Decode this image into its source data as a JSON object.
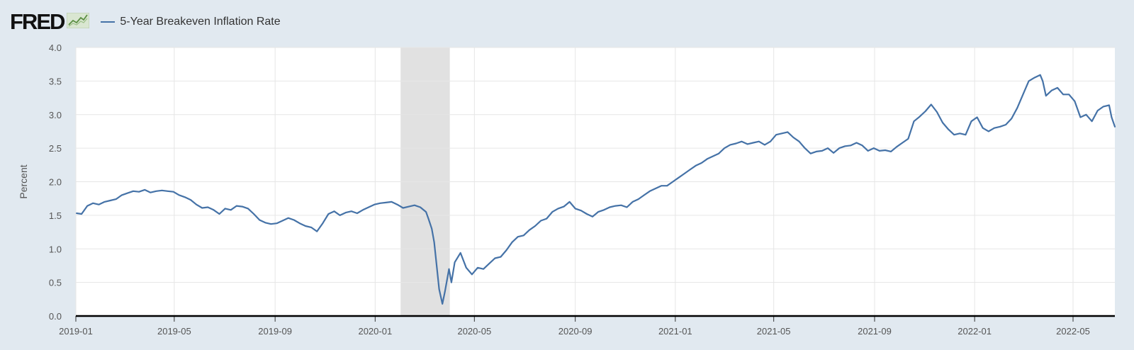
{
  "header": {
    "logo_text": "FRED",
    "legend_label": "5-Year Breakeven Inflation Rate"
  },
  "colors": {
    "series": "#4572a7",
    "recession": "#e1e1e1",
    "background": "#e1e9f0",
    "plot_background": "#ffffff",
    "grid": "#e6e6e6"
  },
  "chart_data": {
    "type": "line",
    "title": "",
    "xlabel": "",
    "ylabel": "Percent",
    "ylim": [
      0,
      4
    ],
    "yticks": [
      "0.0",
      "0.5",
      "1.0",
      "1.5",
      "2.0",
      "2.5",
      "3.0",
      "3.5",
      "4.0"
    ],
    "xlim": [
      "2019-01-01",
      "2022-06-21"
    ],
    "xticks": [
      "2019-01",
      "2019-05",
      "2019-09",
      "2020-01",
      "2020-05",
      "2020-09",
      "2021-01",
      "2021-05",
      "2021-09",
      "2022-01",
      "2022-05"
    ],
    "grid": true,
    "legend": "top-left",
    "recession_shading": [
      [
        "2020-02-01",
        "2020-04-01"
      ]
    ],
    "series": [
      {
        "name": "5-Year Breakeven Inflation Rate",
        "x": [
          "2019-01-02",
          "2019-01-08",
          "2019-01-15",
          "2019-01-22",
          "2019-01-29",
          "2019-02-05",
          "2019-02-12",
          "2019-02-19",
          "2019-02-26",
          "2019-03-05",
          "2019-03-12",
          "2019-03-19",
          "2019-03-26",
          "2019-04-02",
          "2019-04-09",
          "2019-04-16",
          "2019-04-23",
          "2019-04-30",
          "2019-05-07",
          "2019-05-14",
          "2019-05-21",
          "2019-05-28",
          "2019-06-04",
          "2019-06-11",
          "2019-06-18",
          "2019-06-25",
          "2019-07-02",
          "2019-07-09",
          "2019-07-16",
          "2019-07-23",
          "2019-07-30",
          "2019-08-06",
          "2019-08-13",
          "2019-08-20",
          "2019-08-27",
          "2019-09-03",
          "2019-09-10",
          "2019-09-17",
          "2019-09-24",
          "2019-10-01",
          "2019-10-08",
          "2019-10-15",
          "2019-10-22",
          "2019-10-29",
          "2019-11-05",
          "2019-11-12",
          "2019-11-19",
          "2019-11-26",
          "2019-12-03",
          "2019-12-10",
          "2019-12-17",
          "2019-12-24",
          "2019-12-31",
          "2020-01-07",
          "2020-01-14",
          "2020-01-21",
          "2020-01-28",
          "2020-02-04",
          "2020-02-11",
          "2020-02-18",
          "2020-02-25",
          "2020-03-03",
          "2020-03-06",
          "2020-03-10",
          "2020-03-13",
          "2020-03-16",
          "2020-03-19",
          "2020-03-23",
          "2020-03-26",
          "2020-03-31",
          "2020-04-03",
          "2020-04-07",
          "2020-04-14",
          "2020-04-21",
          "2020-04-28",
          "2020-05-05",
          "2020-05-12",
          "2020-05-19",
          "2020-05-26",
          "2020-06-02",
          "2020-06-09",
          "2020-06-16",
          "2020-06-23",
          "2020-06-30",
          "2020-07-07",
          "2020-07-14",
          "2020-07-21",
          "2020-07-28",
          "2020-08-04",
          "2020-08-11",
          "2020-08-18",
          "2020-08-25",
          "2020-09-01",
          "2020-09-08",
          "2020-09-15",
          "2020-09-22",
          "2020-09-29",
          "2020-10-06",
          "2020-10-13",
          "2020-10-20",
          "2020-10-27",
          "2020-11-03",
          "2020-11-10",
          "2020-11-17",
          "2020-11-24",
          "2020-12-01",
          "2020-12-08",
          "2020-12-15",
          "2020-12-22",
          "2020-12-29",
          "2021-01-05",
          "2021-01-12",
          "2021-01-19",
          "2021-01-26",
          "2021-02-02",
          "2021-02-09",
          "2021-02-16",
          "2021-02-23",
          "2021-03-02",
          "2021-03-09",
          "2021-03-16",
          "2021-03-23",
          "2021-03-30",
          "2021-04-06",
          "2021-04-13",
          "2021-04-20",
          "2021-04-27",
          "2021-05-04",
          "2021-05-11",
          "2021-05-18",
          "2021-05-25",
          "2021-06-01",
          "2021-06-08",
          "2021-06-15",
          "2021-06-22",
          "2021-06-29",
          "2021-07-06",
          "2021-07-13",
          "2021-07-20",
          "2021-07-27",
          "2021-08-03",
          "2021-08-10",
          "2021-08-17",
          "2021-08-24",
          "2021-08-31",
          "2021-09-07",
          "2021-09-14",
          "2021-09-21",
          "2021-09-28",
          "2021-10-05",
          "2021-10-12",
          "2021-10-19",
          "2021-10-26",
          "2021-11-02",
          "2021-11-09",
          "2021-11-16",
          "2021-11-23",
          "2021-11-30",
          "2021-12-07",
          "2021-12-14",
          "2021-12-21",
          "2021-12-28",
          "2022-01-04",
          "2022-01-11",
          "2022-01-18",
          "2022-01-25",
          "2022-02-01",
          "2022-02-08",
          "2022-02-15",
          "2022-02-22",
          "2022-03-01",
          "2022-03-08",
          "2022-03-15",
          "2022-03-22",
          "2022-03-25",
          "2022-03-29",
          "2022-04-05",
          "2022-04-12",
          "2022-04-19",
          "2022-04-26",
          "2022-05-03",
          "2022-05-10",
          "2022-05-17",
          "2022-05-24",
          "2022-05-31",
          "2022-06-07",
          "2022-06-14",
          "2022-06-17",
          "2022-06-21"
        ],
        "values": [
          1.53,
          1.52,
          1.64,
          1.68,
          1.66,
          1.7,
          1.72,
          1.74,
          1.8,
          1.83,
          1.86,
          1.85,
          1.88,
          1.84,
          1.86,
          1.87,
          1.86,
          1.85,
          1.8,
          1.77,
          1.73,
          1.66,
          1.61,
          1.62,
          1.58,
          1.52,
          1.6,
          1.58,
          1.64,
          1.63,
          1.6,
          1.52,
          1.43,
          1.39,
          1.37,
          1.38,
          1.42,
          1.46,
          1.43,
          1.38,
          1.34,
          1.32,
          1.26,
          1.38,
          1.52,
          1.56,
          1.5,
          1.54,
          1.56,
          1.53,
          1.58,
          1.62,
          1.66,
          1.68,
          1.69,
          1.7,
          1.66,
          1.61,
          1.63,
          1.65,
          1.62,
          1.55,
          1.45,
          1.3,
          1.1,
          0.75,
          0.4,
          0.18,
          0.36,
          0.7,
          0.5,
          0.8,
          0.94,
          0.72,
          0.62,
          0.72,
          0.7,
          0.78,
          0.86,
          0.88,
          0.98,
          1.1,
          1.18,
          1.2,
          1.28,
          1.34,
          1.42,
          1.45,
          1.55,
          1.6,
          1.63,
          1.7,
          1.6,
          1.57,
          1.52,
          1.48,
          1.55,
          1.58,
          1.62,
          1.64,
          1.65,
          1.62,
          1.7,
          1.74,
          1.8,
          1.86,
          1.9,
          1.94,
          1.94,
          2.0,
          2.06,
          2.12,
          2.18,
          2.24,
          2.28,
          2.34,
          2.38,
          2.42,
          2.5,
          2.55,
          2.57,
          2.6,
          2.56,
          2.58,
          2.6,
          2.55,
          2.6,
          2.7,
          2.72,
          2.74,
          2.66,
          2.6,
          2.5,
          2.42,
          2.45,
          2.46,
          2.5,
          2.43,
          2.5,
          2.53,
          2.54,
          2.58,
          2.54,
          2.46,
          2.5,
          2.46,
          2.47,
          2.45,
          2.52,
          2.58,
          2.64,
          2.9,
          2.97,
          3.05,
          3.15,
          3.04,
          2.88,
          2.78,
          2.7,
          2.72,
          2.7,
          2.9,
          2.96,
          2.8,
          2.75,
          2.8,
          2.82,
          2.85,
          2.94,
          3.1,
          3.3,
          3.5,
          3.55,
          3.59,
          3.5,
          3.28,
          3.36,
          3.4,
          3.3,
          3.3,
          3.2,
          2.96,
          3.0,
          2.9,
          3.06,
          3.12,
          3.14,
          2.96,
          2.82
        ]
      }
    ]
  }
}
